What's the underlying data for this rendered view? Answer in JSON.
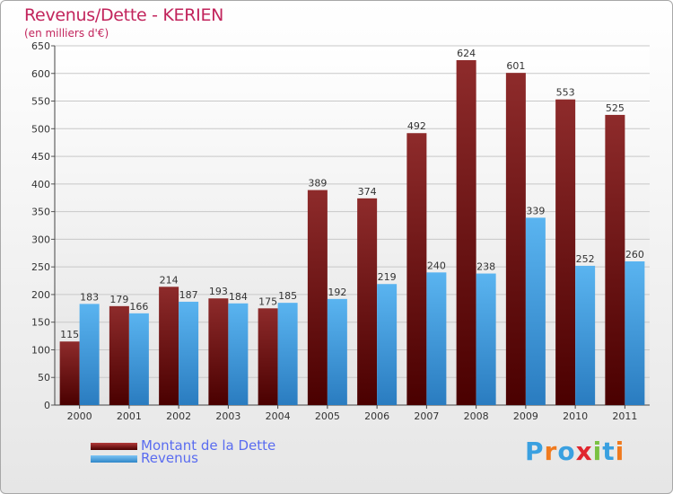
{
  "chart_data": {
    "type": "bar",
    "title": "Revenus/Dette - KERIEN",
    "subtitle": "(en milliers d'€)",
    "categories": [
      "2000",
      "2001",
      "2002",
      "2003",
      "2004",
      "2005",
      "2006",
      "2007",
      "2008",
      "2009",
      "2010",
      "2011"
    ],
    "series": [
      {
        "name": "Montant de la Dette",
        "color": "#7a1a1a",
        "values": [
          115,
          179,
          214,
          193,
          175,
          389,
          374,
          492,
          624,
          601,
          553,
          525
        ]
      },
      {
        "name": "Revenus",
        "color": "#4aa3e6",
        "values": [
          183,
          166,
          187,
          184,
          185,
          192,
          219,
          240,
          238,
          339,
          252,
          260
        ]
      }
    ],
    "ylim": [
      0,
      650
    ],
    "yticks": [
      0,
      50,
      100,
      150,
      200,
      250,
      300,
      350,
      400,
      450,
      500,
      550,
      600,
      650
    ],
    "grid": true,
    "legend_position": "bottom-left"
  },
  "legend": [
    {
      "label": "Montant de la Dette",
      "color": "#7a1a1a"
    },
    {
      "label": "Revenus",
      "color": "#4aa3e6"
    }
  ],
  "brand": {
    "letters": [
      "P",
      "r",
      "o",
      "x",
      "i",
      "t",
      "i"
    ],
    "colors": [
      "#3aa0e0",
      "#f07a1e",
      "#3aa0e0",
      "#e0262e",
      "#7ac142",
      "#3aa0e0",
      "#f07a1e"
    ]
  }
}
